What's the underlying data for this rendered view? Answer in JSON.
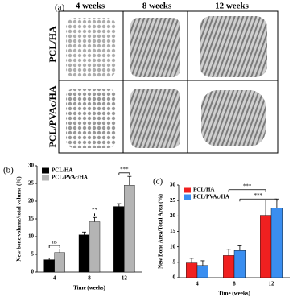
{
  "panel_a": {
    "label": "(a)",
    "columns": [
      "4 weeks",
      "8 weeks",
      "12 weeks"
    ],
    "rows": [
      "PCL/HA",
      "PCL/PVAc/HA"
    ]
  },
  "chart_data": [
    {
      "type": "bar",
      "panel_label": "(b)",
      "x_label": "Time (weeks)",
      "y_label": "New bone volume/total volume (%)",
      "categories": [
        "4",
        "8",
        "12"
      ],
      "series": [
        {
          "name": "PCL/HA",
          "color": "#000000",
          "values": [
            3.5,
            10.5,
            18.5
          ],
          "errors": [
            0.5,
            0.8,
            0.8
          ]
        },
        {
          "name": "PCL/PVAc/HA",
          "color": "#b4b4b4",
          "values": [
            5.5,
            14.2,
            24.5
          ],
          "errors": [
            1,
            1.2,
            2.5
          ]
        }
      ],
      "ylim": [
        0,
        30
      ],
      "yticks": [
        0,
        5,
        10,
        15,
        20,
        25,
        30
      ],
      "legend": "upper left",
      "annotations": [
        "ns",
        "**",
        "***"
      ]
    },
    {
      "type": "bar",
      "panel_label": "(c)",
      "x_label": "Time (weeks)",
      "y_label": "New Bone Area/Total Area (%)",
      "categories": [
        "4",
        "8",
        "12"
      ],
      "series": [
        {
          "name": "PCL/HA",
          "color": "#f02020",
          "values": [
            4.8,
            7.2,
            20.2
          ],
          "errors": [
            1.5,
            2,
            5
          ]
        },
        {
          "name": "PCL/PVAc/HA",
          "color": "#3a8ef0",
          "values": [
            4,
            8.8,
            22.5
          ],
          "errors": [
            1.5,
            1.5,
            3
          ]
        }
      ],
      "ylim": [
        0,
        30
      ],
      "yticks": [
        0,
        5,
        10,
        15,
        20,
        25,
        30
      ],
      "legend": "upper left",
      "annotations": [
        "***",
        "***"
      ]
    }
  ]
}
